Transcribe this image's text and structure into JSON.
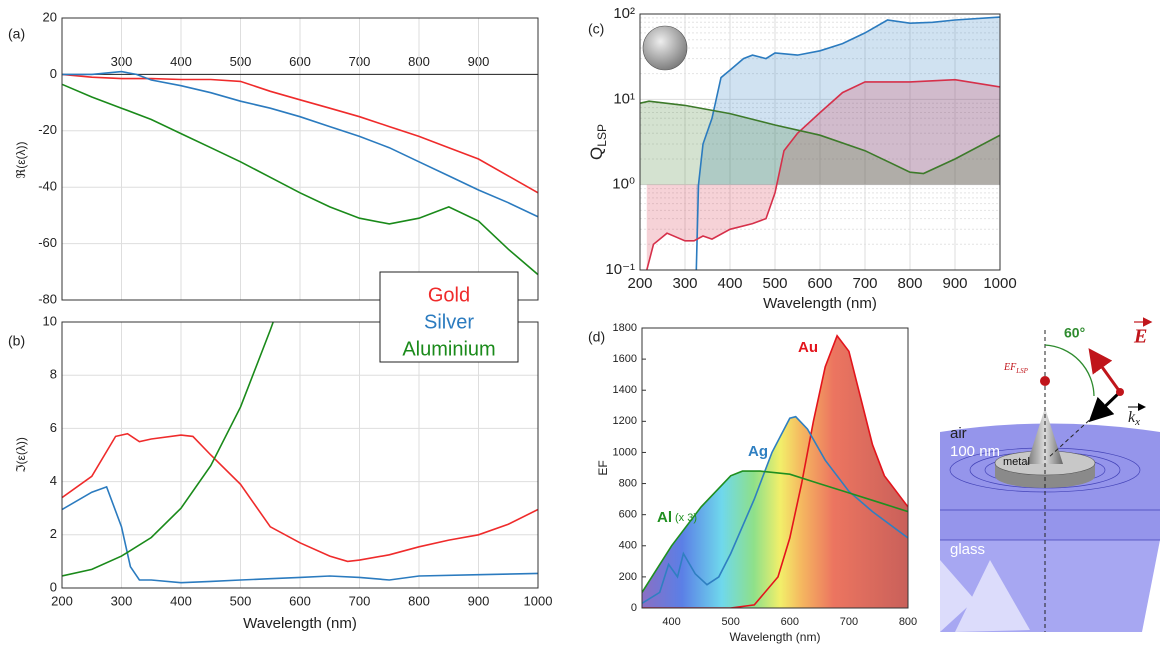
{
  "chart_data": [
    {
      "panel": "(a)",
      "type": "line",
      "ylabel": "ℜ(ε(λ))",
      "xlim": [
        200,
        1000
      ],
      "xticks": [
        300,
        400,
        500,
        600,
        700,
        800,
        900
      ],
      "xtick_position": "zero",
      "ylim": [
        -80,
        20
      ],
      "yticks": [
        -80,
        -60,
        -40,
        -20,
        0,
        20
      ],
      "grid": true,
      "series": [
        {
          "color": "#ef2b2b",
          "x": [
            200,
            250,
            300,
            350,
            400,
            450,
            500,
            550,
            600,
            650,
            700,
            750,
            800,
            850,
            900,
            950,
            1000
          ],
          "values": [
            0,
            -1,
            -1.5,
            -1.5,
            -1.8,
            -1.8,
            -2.5,
            -6,
            -9,
            -12,
            -15,
            -18.5,
            -22,
            -26,
            -30,
            -36,
            -42
          ]
        },
        {
          "color": "#2b7bbf",
          "x": [
            200,
            250,
            300,
            325,
            350,
            400,
            450,
            500,
            550,
            600,
            650,
            700,
            750,
            800,
            850,
            900,
            950,
            1000
          ],
          "values": [
            0,
            0,
            1,
            0,
            -2,
            -4,
            -6.5,
            -9.5,
            -12,
            -15,
            -18.5,
            -22,
            -26,
            -31,
            -36,
            -41,
            -45.5,
            -50.5
          ]
        },
        {
          "color": "#1a8a1a",
          "x": [
            200,
            250,
            300,
            350,
            400,
            450,
            500,
            550,
            600,
            650,
            700,
            750,
            800,
            850,
            900,
            950,
            1000
          ],
          "values": [
            -3.5,
            -8,
            -12,
            -16,
            -21,
            -26,
            -31,
            -36.5,
            -42,
            -47,
            -51,
            -53,
            -51,
            -47,
            -52,
            -62,
            -71
          ]
        }
      ]
    },
    {
      "panel": "(b)",
      "type": "line",
      "ylabel": "ℑ(ε(λ))",
      "xlabel": "Wavelength (nm)",
      "xlim": [
        200,
        1000
      ],
      "xticks": [
        200,
        300,
        400,
        500,
        600,
        700,
        800,
        900,
        1000
      ],
      "ylim": [
        0,
        10
      ],
      "yticks": [
        0,
        2,
        4,
        6,
        8,
        10
      ],
      "grid": true,
      "legend": "upper right",
      "series": [
        {
          "name": "Gold",
          "color": "#ef2b2b",
          "x": [
            200,
            250,
            290,
            310,
            330,
            350,
            400,
            420,
            450,
            500,
            550,
            600,
            650,
            680,
            700,
            750,
            800,
            850,
            900,
            950,
            1000
          ],
          "values": [
            3.4,
            4.2,
            5.7,
            5.8,
            5.5,
            5.6,
            5.75,
            5.7,
            5.0,
            3.9,
            2.3,
            1.7,
            1.2,
            1.0,
            1.05,
            1.25,
            1.55,
            1.8,
            2.0,
            2.4,
            2.95
          ]
        },
        {
          "name": "Silver",
          "color": "#2b7bbf",
          "x": [
            200,
            250,
            275,
            300,
            315,
            330,
            350,
            400,
            450,
            500,
            550,
            600,
            650,
            700,
            750,
            800,
            900,
            1000
          ],
          "values": [
            2.95,
            3.6,
            3.8,
            2.3,
            0.8,
            0.3,
            0.3,
            0.2,
            0.25,
            0.3,
            0.35,
            0.4,
            0.45,
            0.4,
            0.3,
            0.45,
            0.5,
            0.55
          ]
        },
        {
          "name": "Aluminium",
          "color": "#1a8a1a",
          "x": [
            200,
            250,
            300,
            350,
            400,
            450,
            500,
            550,
            555
          ],
          "values": [
            0.45,
            0.7,
            1.2,
            1.9,
            3.0,
            4.6,
            6.8,
            9.7,
            10
          ]
        }
      ]
    },
    {
      "panel": "(c)",
      "type": "line",
      "ylabel": "Q",
      "ylabel_sub": "LSP",
      "xlabel": "Wavelength (nm)",
      "xlim": [
        200,
        1000
      ],
      "xticks": [
        200,
        300,
        400,
        500,
        600,
        700,
        800,
        900,
        1000
      ],
      "log": true,
      "ylim": [
        0.1,
        100
      ],
      "yticks": [
        {
          "value": 0.1,
          "label": "10⁻¹"
        },
        {
          "value": 1,
          "label": "10⁰"
        },
        {
          "value": 10,
          "label": "10¹"
        },
        {
          "value": 100,
          "label": "10²"
        }
      ],
      "grid": true,
      "fill": true,
      "fill_base": 1,
      "series": [
        {
          "color": "#2b7bbf",
          "x": [
            325,
            330,
            340,
            360,
            380,
            400,
            430,
            450,
            480,
            500,
            550,
            600,
            650,
            700,
            750,
            800,
            850,
            900,
            1000
          ],
          "values": [
            0.1,
            1,
            3,
            6,
            18,
            22,
            30,
            33,
            30,
            35,
            33,
            37,
            45,
            60,
            85,
            78,
            80,
            85,
            92
          ]
        },
        {
          "color": "#d6304a",
          "x": [
            215,
            230,
            260,
            300,
            320,
            340,
            360,
            400,
            450,
            480,
            500,
            520,
            550,
            600,
            650,
            700,
            800,
            900,
            1000
          ],
          "values": [
            0.1,
            0.2,
            0.27,
            0.22,
            0.22,
            0.25,
            0.23,
            0.3,
            0.35,
            0.4,
            0.8,
            2.5,
            4,
            7,
            12,
            16,
            16,
            17,
            14
          ]
        },
        {
          "color": "#3d7a2a",
          "x": [
            200,
            220,
            300,
            400,
            500,
            600,
            700,
            800,
            830,
            900,
            1000
          ],
          "values": [
            9,
            9.5,
            8.5,
            6.8,
            5,
            3.8,
            2.5,
            1.4,
            1.35,
            2.0,
            3.8
          ]
        }
      ]
    },
    {
      "panel": "(d)",
      "type": "area",
      "ylabel": "EF",
      "xlabel": "Wavelength (nm)",
      "xlim": [
        350,
        800
      ],
      "xticks": [
        400,
        500,
        600,
        700,
        800
      ],
      "ylim": [
        0,
        1800
      ],
      "yticks": [
        0,
        200,
        400,
        600,
        800,
        1000,
        1200,
        1400,
        1600,
        1800
      ],
      "fill_gradient": "spectrum",
      "series": [
        {
          "name": "Au",
          "color": "#e3141c",
          "x": [
            350,
            500,
            540,
            580,
            600,
            620,
            640,
            660,
            680,
            700,
            720,
            740,
            760,
            780,
            800
          ],
          "values": [
            0,
            0,
            20,
            200,
            450,
            800,
            1200,
            1550,
            1750,
            1650,
            1350,
            1050,
            850,
            750,
            650
          ]
        },
        {
          "name": "Ag",
          "color": "#2f7fc1",
          "x": [
            350,
            380,
            395,
            410,
            420,
            440,
            460,
            480,
            500,
            540,
            570,
            600,
            610,
            630,
            660,
            700,
            740,
            800
          ],
          "values": [
            30,
            100,
            280,
            200,
            350,
            220,
            150,
            200,
            350,
            700,
            1000,
            1220,
            1230,
            1150,
            950,
            750,
            620,
            450
          ]
        },
        {
          "name": "Al",
          "note": "(x 3)",
          "color": "#1f8f1f",
          "x": [
            350,
            400,
            450,
            500,
            520,
            550,
            600,
            650,
            700,
            750,
            800
          ],
          "values": [
            100,
            400,
            650,
            850,
            880,
            880,
            860,
            800,
            740,
            680,
            620
          ]
        }
      ]
    }
  ],
  "diagram": {
    "angle": "60°",
    "field": "E",
    "hotspot": "EF",
    "hotspot_sub": "LSP",
    "wavevector": "k",
    "wavevector_sub": "x",
    "air": "air",
    "thickness": "100 nm",
    "metal": "metal",
    "glass": "glass"
  }
}
